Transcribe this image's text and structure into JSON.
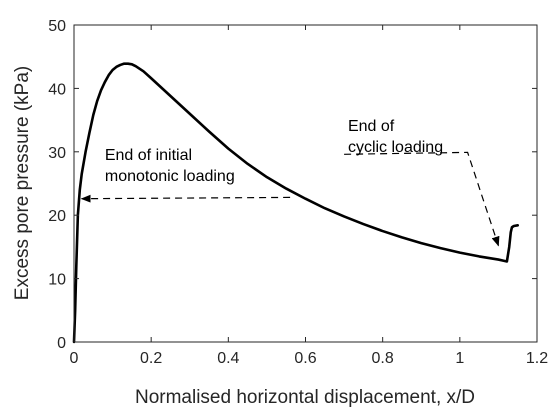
{
  "chart_data": {
    "type": "line",
    "title": "",
    "xlabel": "Normalised horizontal displacement, x/D",
    "ylabel": "Excess pore pressure (kPa)",
    "xlim": [
      0,
      1.2
    ],
    "ylim": [
      0,
      50
    ],
    "xticks": [
      0,
      0.2,
      0.4,
      0.6,
      0.8,
      1,
      1.2
    ],
    "xtick_labels": [
      "0",
      "0.2",
      "0.4",
      "0.6",
      "0.8",
      "1",
      "1.2"
    ],
    "yticks": [
      0,
      10,
      20,
      30,
      40,
      50
    ],
    "ytick_labels": [
      "0",
      "10",
      "20",
      "30",
      "40",
      "50"
    ],
    "grid": false,
    "legend": "none",
    "line_color": "#000000",
    "series": [
      {
        "x": [
          0,
          0.003,
          0.006,
          0.01,
          0.015,
          0.02,
          0.03,
          0.04,
          0.05,
          0.06,
          0.07,
          0.08,
          0.09,
          0.1,
          0.11,
          0.12,
          0.13,
          0.14,
          0.15,
          0.16,
          0.18,
          0.2,
          0.25,
          0.3,
          0.35,
          0.4,
          0.45,
          0.5,
          0.55,
          0.6,
          0.65,
          0.7,
          0.75,
          0.8,
          0.85,
          0.9,
          0.95,
          1.0,
          1.05,
          1.1,
          1.115,
          1.122,
          1.128,
          1.132,
          1.135,
          1.14,
          1.15
        ],
        "y": [
          0,
          5,
          12,
          20,
          24,
          26.5,
          30,
          33,
          35.8,
          38,
          39.7,
          41,
          42.1,
          42.9,
          43.4,
          43.7,
          43.9,
          43.9,
          43.8,
          43.5,
          42.7,
          41.6,
          38.8,
          36,
          33.2,
          30.5,
          28.1,
          26,
          24.2,
          22.6,
          21.1,
          19.8,
          18.6,
          17.5,
          16.5,
          15.6,
          14.8,
          14.1,
          13.5,
          13,
          12.8,
          12.7,
          15,
          17.3,
          18.1,
          18.3,
          18.4
        ]
      }
    ],
    "annotations": [
      {
        "lines": [
          "End of initial",
          "monotonic loading"
        ],
        "text_at": [
          0.08,
          28.7
        ],
        "arrow_from": [
          0.56,
          22.8
        ],
        "arrow_to": [
          0.02,
          22.6
        ]
      },
      {
        "lines": [
          "End of",
          "cyclic loading"
        ],
        "text_at": [
          0.71,
          33.3
        ],
        "arrow_from": [
          0.7,
          29.6
        ],
        "arrow_via": [
          1.02,
          29.9
        ],
        "arrow_to": [
          1.1,
          15.2
        ]
      }
    ]
  }
}
